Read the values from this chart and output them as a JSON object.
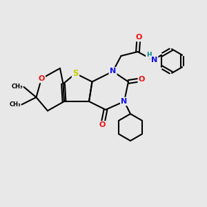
{
  "bg_color": "#e8e8e8",
  "atom_colors": {
    "C": "#000000",
    "N": "#1010ee",
    "O": "#ee1010",
    "S": "#cccc00",
    "H": "#008888"
  },
  "bond_color": "#000000",
  "bond_width": 1.5,
  "figsize": [
    3.0,
    3.0
  ],
  "dpi": 100,
  "xlim": [
    0,
    10
  ],
  "ylim": [
    0,
    10
  ]
}
